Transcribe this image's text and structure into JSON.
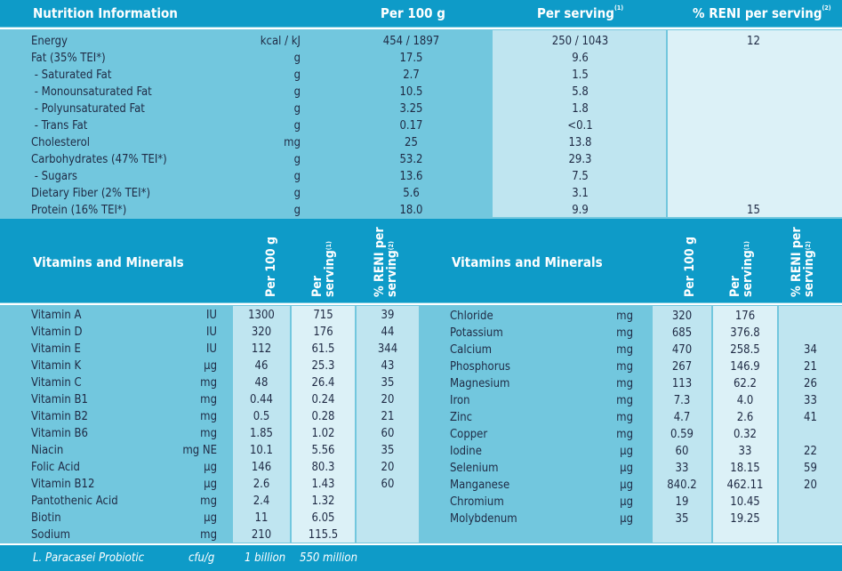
{
  "nutrition": {
    "title": "Nutrition Information",
    "col_per100": "Per 100 g",
    "col_serving": "Per serving",
    "col_serving_note": "(1)",
    "col_reni": "% RENI per serving",
    "col_reni_note": "(2)",
    "rows": [
      {
        "name": "Energy",
        "unit": "kcal / kJ",
        "per100": "454 / 1897",
        "serving": "250 / 1043",
        "reni": "12"
      },
      {
        "name": "Fat (35% TEI*)",
        "unit": "g",
        "per100": "17.5",
        "serving": "9.6",
        "reni": ""
      },
      {
        "name": " - Saturated Fat",
        "unit": "g",
        "per100": "2.7",
        "serving": "1.5",
        "reni": ""
      },
      {
        "name": " - Monounsaturated Fat",
        "unit": "g",
        "per100": "10.5",
        "serving": "5.8",
        "reni": ""
      },
      {
        "name": " - Polyunsaturated Fat",
        "unit": "g",
        "per100": "3.25",
        "serving": "1.8",
        "reni": ""
      },
      {
        "name": " - Trans Fat",
        "unit": "g",
        "per100": "0.17",
        "serving": "<0.1",
        "reni": ""
      },
      {
        "name": "Cholesterol",
        "unit": "mg",
        "per100": "25",
        "serving": "13.8",
        "reni": ""
      },
      {
        "name": "Carbohydrates (47% TEI*)",
        "unit": "g",
        "per100": "53.2",
        "serving": "29.3",
        "reni": ""
      },
      {
        "name": " - Sugars",
        "unit": "g",
        "per100": "13.6",
        "serving": "7.5",
        "reni": ""
      },
      {
        "name": "Dietary Fiber (2% TEI*)",
        "unit": "g",
        "per100": "5.6",
        "serving": "3.1",
        "reni": ""
      },
      {
        "name": "Protein (16% TEI*)",
        "unit": "g",
        "per100": "18.0",
        "serving": "9.9",
        "reni": "15"
      }
    ]
  },
  "vitamins": {
    "title": "Vitamins and Minerals",
    "col_per100": "Per 100 g",
    "col_serving_1": "Per",
    "col_serving_2": "serving",
    "col_serving_note": "(1)",
    "col_reni_1": "% RENI per",
    "col_reni_2": "serving",
    "col_reni_note": "(2)",
    "left": [
      {
        "name": "Vitamin A",
        "unit": "IU",
        "per100": "1300",
        "serving": "715",
        "reni": "39"
      },
      {
        "name": "Vitamin D",
        "unit": "IU",
        "per100": "320",
        "serving": "176",
        "reni": "44"
      },
      {
        "name": "Vitamin E",
        "unit": "IU",
        "per100": "112",
        "serving": "61.5",
        "reni": "344"
      },
      {
        "name": "Vitamin K",
        "unit": "µg",
        "per100": "46",
        "serving": "25.3",
        "reni": "43"
      },
      {
        "name": "Vitamin C",
        "unit": "mg",
        "per100": "48",
        "serving": "26.4",
        "reni": "35"
      },
      {
        "name": "Vitamin B1",
        "unit": "mg",
        "per100": "0.44",
        "serving": "0.24",
        "reni": "20"
      },
      {
        "name": "Vitamin B2",
        "unit": "mg",
        "per100": "0.5",
        "serving": "0.28",
        "reni": "21"
      },
      {
        "name": "Vitamin B6",
        "unit": "mg",
        "per100": "1.85",
        "serving": "1.02",
        "reni": "60"
      },
      {
        "name": "Niacin",
        "unit": "mg NE",
        "per100": "10.1",
        "serving": "5.56",
        "reni": "35"
      },
      {
        "name": "Folic Acid",
        "unit": "µg",
        "per100": "146",
        "serving": "80.3",
        "reni": "20"
      },
      {
        "name": "Vitamin B12",
        "unit": "µg",
        "per100": "2.6",
        "serving": "1.43",
        "reni": "60"
      },
      {
        "name": "Pantothenic Acid",
        "unit": "mg",
        "per100": "2.4",
        "serving": "1.32",
        "reni": ""
      },
      {
        "name": "Biotin",
        "unit": "µg",
        "per100": "11",
        "serving": "6.05",
        "reni": ""
      },
      {
        "name": "Sodium",
        "unit": "mg",
        "per100": "210",
        "serving": "115.5",
        "reni": ""
      }
    ],
    "right": [
      {
        "name": "Chloride",
        "unit": "mg",
        "per100": "320",
        "serving": "176",
        "reni": ""
      },
      {
        "name": "Potassium",
        "unit": "mg",
        "per100": "685",
        "serving": "376.8",
        "reni": ""
      },
      {
        "name": "Calcium",
        "unit": "mg",
        "per100": "470",
        "serving": "258.5",
        "reni": "34"
      },
      {
        "name": "Phosphorus",
        "unit": "mg",
        "per100": "267",
        "serving": "146.9",
        "reni": "21"
      },
      {
        "name": "Magnesium",
        "unit": "mg",
        "per100": "113",
        "serving": "62.2",
        "reni": "26"
      },
      {
        "name": "Iron",
        "unit": "mg",
        "per100": "7.3",
        "serving": "4.0",
        "reni": "33"
      },
      {
        "name": "Zinc",
        "unit": "mg",
        "per100": "4.7",
        "serving": "2.6",
        "reni": "41"
      },
      {
        "name": "Copper",
        "unit": "mg",
        "per100": "0.59",
        "serving": "0.32",
        "reni": ""
      },
      {
        "name": "Iodine",
        "unit": "µg",
        "per100": "60",
        "serving": "33",
        "reni": "22"
      },
      {
        "name": "Selenium",
        "unit": "µg",
        "per100": "33",
        "serving": "18.15",
        "reni": "59"
      },
      {
        "name": "Manganese",
        "unit": "µg",
        "per100": "840.2",
        "serving": "462.11",
        "reni": "20"
      },
      {
        "name": "Chromium",
        "unit": "µg",
        "per100": "19",
        "serving": "10.45",
        "reni": ""
      },
      {
        "name": "Molybdenum",
        "unit": "µg",
        "per100": "35",
        "serving": "19.25",
        "reni": ""
      }
    ]
  },
  "probiotic": {
    "name": "L. Paracasei Probiotic",
    "unit": "cfu/g",
    "per100": "1 billion",
    "serving": "550 million"
  },
  "colors": {
    "header": "#0e9bc8",
    "base": "#72c7de",
    "column_light": "#bfe5f0",
    "column_lighter": "#dcf1f7",
    "text": "#1f2a44"
  }
}
